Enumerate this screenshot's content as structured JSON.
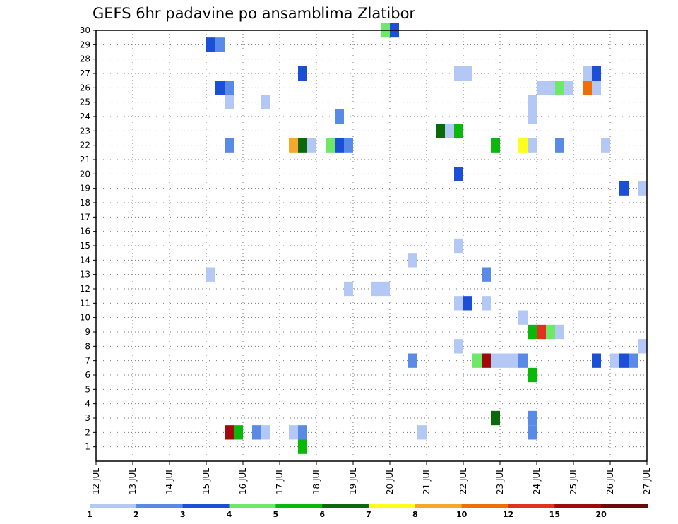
{
  "chart_data": {
    "type": "heatmap",
    "title": "GEFS 6hr padavine po ansamblima Zlatibor",
    "xlabel": "",
    "ylabel": "",
    "x_tick_labels": [
      "12 JUL",
      "13 JUL",
      "14 JUL",
      "15 JUL",
      "16 JUL",
      "17 JUL",
      "18 JUL",
      "19 JUL",
      "20 JUL",
      "21 JUL",
      "22 JUL",
      "23 JUL",
      "24 JUL",
      "25 JUL",
      "26 JUL",
      "27 JUL"
    ],
    "y_tick_labels": [
      "1",
      "2",
      "3",
      "4",
      "5",
      "6",
      "7",
      "8",
      "9",
      "10",
      "11",
      "12",
      "13",
      "14",
      "15",
      "16",
      "17",
      "18",
      "19",
      "20",
      "21",
      "22",
      "23",
      "24",
      "25",
      "26",
      "27",
      "28",
      "29",
      "30"
    ],
    "xlim_days": [
      12,
      27
    ],
    "ylim": [
      0,
      30
    ],
    "grid": true,
    "legend": {
      "placement": "bottom",
      "breaks": [
        "1",
        "2",
        "3",
        "4",
        "5",
        "6",
        "7",
        "8",
        "10",
        "12",
        "15",
        "20"
      ],
      "colors": [
        "#b4c8f5",
        "#5a8ae8",
        "#1a4fd6",
        "#6ee866",
        "#0ab80a",
        "#0a6a0a",
        "#ffff1e",
        "#f5a82a",
        "#f06e0a",
        "#e0321e",
        "#a00a0a",
        "#6a0a0a"
      ]
    },
    "cells": [
      {
        "day": 15.125,
        "member": 29,
        "level": 3
      },
      {
        "day": 15.375,
        "member": 29,
        "level": 2
      },
      {
        "day": 19.875,
        "member": 30,
        "level": 4
      },
      {
        "day": 20.125,
        "member": 30,
        "level": 3
      },
      {
        "day": 17.625,
        "member": 27,
        "level": 3
      },
      {
        "day": 21.875,
        "member": 27,
        "level": 1
      },
      {
        "day": 22.125,
        "member": 27,
        "level": 1
      },
      {
        "day": 25.375,
        "member": 27,
        "level": 1
      },
      {
        "day": 25.625,
        "member": 27,
        "level": 3
      },
      {
        "day": 15.375,
        "member": 26,
        "level": 3
      },
      {
        "day": 15.625,
        "member": 26,
        "level": 2
      },
      {
        "day": 24.125,
        "member": 26,
        "level": 1
      },
      {
        "day": 24.375,
        "member": 26,
        "level": 1
      },
      {
        "day": 24.625,
        "member": 26,
        "level": 4
      },
      {
        "day": 24.875,
        "member": 26,
        "level": 1
      },
      {
        "day": 25.375,
        "member": 26,
        "level": 9
      },
      {
        "day": 25.625,
        "member": 26,
        "level": 1
      },
      {
        "day": 15.625,
        "member": 25,
        "level": 1
      },
      {
        "day": 16.625,
        "member": 25,
        "level": 1
      },
      {
        "day": 23.875,
        "member": 25,
        "level": 1
      },
      {
        "day": 18.625,
        "member": 24,
        "level": 2
      },
      {
        "day": 23.875,
        "member": 24,
        "level": 1
      },
      {
        "day": 21.375,
        "member": 23,
        "level": 6
      },
      {
        "day": 21.625,
        "member": 23,
        "level": 1
      },
      {
        "day": 21.875,
        "member": 23,
        "level": 5
      },
      {
        "day": 15.625,
        "member": 22,
        "level": 2
      },
      {
        "day": 17.375,
        "member": 22,
        "level": 8
      },
      {
        "day": 17.625,
        "member": 22,
        "level": 6
      },
      {
        "day": 17.875,
        "member": 22,
        "level": 1
      },
      {
        "day": 18.375,
        "member": 22,
        "level": 4
      },
      {
        "day": 18.625,
        "member": 22,
        "level": 3
      },
      {
        "day": 18.875,
        "member": 22,
        "level": 2
      },
      {
        "day": 22.875,
        "member": 22,
        "level": 5
      },
      {
        "day": 23.625,
        "member": 22,
        "level": 7
      },
      {
        "day": 23.875,
        "member": 22,
        "level": 1
      },
      {
        "day": 24.625,
        "member": 22,
        "level": 2
      },
      {
        "day": 25.875,
        "member": 22,
        "level": 1
      },
      {
        "day": 21.875,
        "member": 20,
        "level": 3
      },
      {
        "day": 26.375,
        "member": 19,
        "level": 3
      },
      {
        "day": 26.875,
        "member": 19,
        "level": 1
      },
      {
        "day": 21.875,
        "member": 15,
        "level": 1
      },
      {
        "day": 20.625,
        "member": 14,
        "level": 1
      },
      {
        "day": 15.125,
        "member": 13,
        "level": 1
      },
      {
        "day": 22.625,
        "member": 13,
        "level": 2
      },
      {
        "day": 18.875,
        "member": 12,
        "level": 1
      },
      {
        "day": 19.625,
        "member": 12,
        "level": 1
      },
      {
        "day": 19.875,
        "member": 12,
        "level": 1
      },
      {
        "day": 21.875,
        "member": 11,
        "level": 1
      },
      {
        "day": 22.125,
        "member": 11,
        "level": 3
      },
      {
        "day": 22.625,
        "member": 11,
        "level": 1
      },
      {
        "day": 23.625,
        "member": 10,
        "level": 1
      },
      {
        "day": 23.875,
        "member": 9,
        "level": 5
      },
      {
        "day": 24.125,
        "member": 9,
        "level": 10
      },
      {
        "day": 24.375,
        "member": 9,
        "level": 4
      },
      {
        "day": 24.625,
        "member": 9,
        "level": 1
      },
      {
        "day": 21.875,
        "member": 8,
        "level": 1
      },
      {
        "day": 26.875,
        "member": 8,
        "level": 1
      },
      {
        "day": 20.625,
        "member": 7,
        "level": 2
      },
      {
        "day": 22.375,
        "member": 7,
        "level": 4
      },
      {
        "day": 22.625,
        "member": 7,
        "level": 11
      },
      {
        "day": 22.875,
        "member": 7,
        "level": 1
      },
      {
        "day": 23.125,
        "member": 7,
        "level": 1
      },
      {
        "day": 23.375,
        "member": 7,
        "level": 1
      },
      {
        "day": 23.625,
        "member": 7,
        "level": 2
      },
      {
        "day": 25.625,
        "member": 7,
        "level": 3
      },
      {
        "day": 26.125,
        "member": 7,
        "level": 1
      },
      {
        "day": 26.375,
        "member": 7,
        "level": 3
      },
      {
        "day": 26.625,
        "member": 7,
        "level": 2
      },
      {
        "day": 23.875,
        "member": 6,
        "level": 5
      },
      {
        "day": 22.875,
        "member": 3,
        "level": 6
      },
      {
        "day": 23.875,
        "member": 3,
        "level": 2
      },
      {
        "day": 15.625,
        "member": 2,
        "level": 11
      },
      {
        "day": 15.875,
        "member": 2,
        "level": 5
      },
      {
        "day": 16.375,
        "member": 2,
        "level": 2
      },
      {
        "day": 16.625,
        "member": 2,
        "level": 1
      },
      {
        "day": 17.375,
        "member": 2,
        "level": 1
      },
      {
        "day": 17.625,
        "member": 2,
        "level": 2
      },
      {
        "day": 20.875,
        "member": 2,
        "level": 1
      },
      {
        "day": 23.875,
        "member": 2,
        "level": 2
      },
      {
        "day": 17.625,
        "member": 1,
        "level": 5
      }
    ]
  }
}
